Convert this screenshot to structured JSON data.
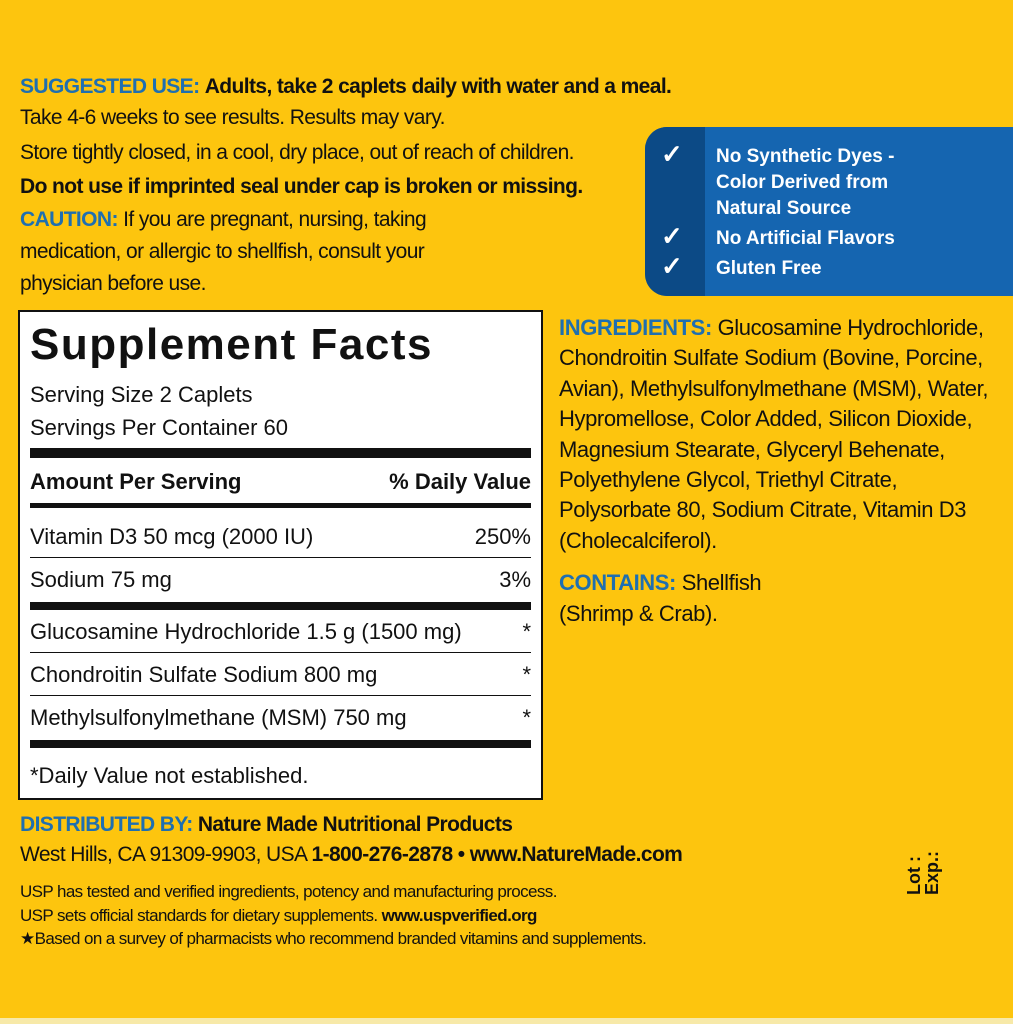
{
  "usage": {
    "suggested_label": "SUGGESTED USE:",
    "suggested_text": "Adults, take 2 caplets daily with water and a meal.",
    "line2": "Take 4-6 weeks to see results. Results may vary.",
    "line3": "Store tightly closed, in a cool, dry place, out of reach of children.",
    "line4": "Do not use if imprinted seal under cap is broken or missing.",
    "caution_label": "CAUTION:",
    "caution_text1": "If you are pregnant, nursing, taking",
    "caution_text2": "medication, or allergic to shellfish, consult your",
    "caution_text3": "physician before use."
  },
  "badge": {
    "items": [
      {
        "icon": "check-icon",
        "lines": [
          "No Synthetic Dyes -",
          "Color Derived from",
          "Natural Source"
        ]
      },
      {
        "icon": "check-icon",
        "lines": [
          "No Artificial Flavors"
        ]
      },
      {
        "icon": "check-icon",
        "lines": [
          "Gluten Free"
        ]
      }
    ],
    "colors": {
      "dark": "#0c4a86",
      "main": "#1565b0"
    }
  },
  "facts": {
    "title": "Supplement Facts",
    "serving_size": "Serving Size 2 Caplets",
    "servings_per_container": "Servings Per Container 60",
    "header_amount": "Amount Per Serving",
    "header_dv": "% Daily Value",
    "rows": [
      {
        "name": "Vitamin D3  50 mcg (2000 IU)",
        "dv": "250%"
      },
      {
        "name": "Sodium  75 mg",
        "dv": "3%"
      },
      {
        "name": "Glucosamine Hydrochloride  1.5 g (1500 mg)",
        "dv": "*"
      },
      {
        "name": "Chondroitin Sulfate Sodium  800 mg",
        "dv": "*"
      },
      {
        "name": "Methylsulfonylmethane (MSM)  750 mg",
        "dv": "*"
      }
    ],
    "footnote": "*Daily Value not established."
  },
  "ingredients": {
    "label": "INGREDIENTS:",
    "text": "Glucosamine Hydrochloride, Chondroitin Sulfate Sodium (Bovine, Porcine, Avian), Methylsulfonylmethane (MSM), Water, Hypromellose, Color Added, Silicon Dioxide, Magnesium Stearate, Glyceryl Behenate, Polyethylene Glycol, Triethyl Citrate, Polysorbate 80, Sodium Citrate, Vitamin D3 (Cholecalciferol).",
    "contains_label": "CONTAINS:",
    "contains_text": "Shellfish (Shrimp & Crab)."
  },
  "distributor": {
    "label": "DISTRIBUTED BY:",
    "name": "Nature Made Nutritional Products",
    "address": "West Hills, CA 91309-9903, USA ",
    "phone": "1-800-276-2878 • www.NatureMade.com"
  },
  "usp": {
    "line1": "USP has tested and verified ingredients, potency and manufacturing process.",
    "line2": "USP sets official standards for dietary supplements. ",
    "line2_url": "www.uspverified.org",
    "line3": "★Based on a survey of pharmacists who recommend branded vitamins and supplements."
  },
  "lot": "Lot :",
  "exp": "Exp.:",
  "colors": {
    "background": "#FDC50E",
    "heading_blue": "#1f6fb0"
  }
}
